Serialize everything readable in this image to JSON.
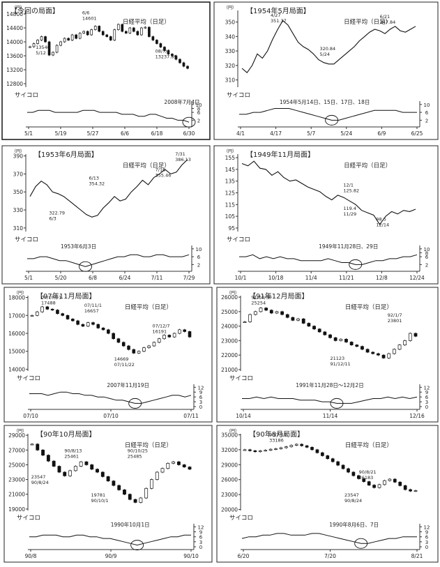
{
  "chart_data": [
    {
      "type": "candlestick",
      "title": "【今回の局面】",
      "series_label": "日経平均（日足）",
      "unit_label": "（円）",
      "yticks": [
        14800,
        14400,
        14000,
        13600,
        13200,
        12800
      ],
      "ylim": [
        12700,
        14900
      ],
      "xticks": [
        "5/1",
        "5/19",
        "5/27",
        "6/6",
        "6/18",
        "6/30"
      ],
      "close": [
        13860,
        13950,
        14050,
        14150,
        14000,
        13620,
        13700,
        13900,
        14000,
        14100,
        14050,
        14200,
        14100,
        14250,
        14300,
        14200,
        14350,
        14450,
        14300,
        14200,
        14150,
        14050,
        14350,
        14500,
        14300,
        14250,
        14400,
        14300,
        14200,
        14400,
        14420,
        14150,
        14050,
        13950,
        13850,
        13750,
        13650,
        13600,
        13500,
        13400,
        13300,
        13240
      ],
      "annotations": [
        {
          "text": "6/6",
          "value_label": "14601"
        },
        {
          "text": "13540",
          "value_label": "5/12"
        },
        {
          "text": "08/7/4",
          "value_label": "13237.89"
        }
      ],
      "dice_label": "サイコロ",
      "dice_yticks": [
        10,
        8,
        6,
        2
      ],
      "dice": [
        6,
        6,
        7,
        7,
        7,
        6,
        6,
        6,
        6,
        6,
        7,
        7,
        7,
        6,
        6,
        6,
        6,
        5,
        5,
        5,
        4,
        4,
        5,
        5,
        4,
        3,
        3,
        2,
        2,
        1
      ],
      "dice_note": "2008年7月4日"
    },
    {
      "type": "line",
      "title": "【1954年5月局面】",
      "series_label": "日経平均（日足）",
      "unit_label": "（円）",
      "yticks": [
        350,
        340,
        330,
        320,
        310
      ],
      "ylim": [
        305,
        358
      ],
      "xticks": [
        "4/1",
        "4/17",
        "5/7",
        "5/24",
        "6/9",
        "6/25"
      ],
      "close": [
        318,
        315,
        320,
        328,
        325,
        330,
        338,
        345,
        351,
        348,
        342,
        336,
        333,
        331,
        328,
        324,
        322,
        321,
        321,
        324,
        327,
        330,
        333,
        337,
        340,
        343,
        345,
        344,
        342,
        345,
        347,
        344,
        343,
        345,
        347
      ],
      "annotations": [
        {
          "text": "4/27",
          "value_label": "351.37"
        },
        {
          "text": "320.84",
          "value_label": "5/24"
        },
        {
          "text": "6/21",
          "value_label": "347.84"
        }
      ],
      "dice_label": "サイコロ",
      "dice_yticks": [
        10,
        6,
        2
      ],
      "dice": [
        5,
        5,
        6,
        6,
        7,
        8,
        8,
        8,
        7,
        6,
        5,
        4,
        3,
        2,
        2,
        3,
        4,
        5,
        6,
        7,
        7,
        7,
        7,
        6,
        6,
        6
      ],
      "dice_note": "1954年5月14日、15日、17日、18日"
    },
    {
      "type": "line",
      "title": "【1953年6月局面】",
      "series_label": "日経平均（日足）",
      "unit_label": "（円）",
      "yticks": [
        390,
        370,
        350,
        330,
        310
      ],
      "ylim": [
        306,
        392
      ],
      "xticks": [
        "5/1",
        "5/20",
        "6/8",
        "6/24",
        "7/11",
        "7/29"
      ],
      "close": [
        345,
        356,
        362,
        358,
        350,
        348,
        345,
        340,
        335,
        330,
        325,
        322,
        324,
        332,
        338,
        345,
        340,
        342,
        350,
        356,
        363,
        358,
        366,
        370,
        375,
        370,
        372,
        380,
        386
      ],
      "annotations": [
        {
          "text": "6/13",
          "value_label": "354.32"
        },
        {
          "text": "322.79",
          "value_label": "6/3"
        },
        {
          "text": "7/16",
          "value_label": "355.46"
        },
        {
          "text": "7/31",
          "value_label": "386.13"
        }
      ],
      "dice_label": "サイコロ",
      "dice_yticks": [
        10,
        6,
        2
      ],
      "dice": [
        5,
        5,
        6,
        6,
        5,
        4,
        4,
        3,
        2,
        1,
        2,
        3,
        4,
        5,
        6,
        6,
        7,
        7,
        6,
        6,
        7,
        7,
        6,
        6,
        6,
        7
      ],
      "dice_note": "1953年6月3日"
    },
    {
      "type": "line",
      "title": "【1949年11月局面】",
      "series_label": "日経平均（日足）",
      "unit_label": "（円）",
      "yticks": [
        155,
        145,
        135,
        125,
        115,
        105,
        95
      ],
      "ylim": [
        92,
        158
      ],
      "xticks": [
        "10/1",
        "10/18",
        "11/4",
        "11/21",
        "12/8",
        "12/24"
      ],
      "close": [
        150,
        148,
        152,
        146,
        145,
        140,
        143,
        138,
        135,
        136,
        133,
        130,
        128,
        126,
        122,
        119,
        123,
        121,
        118,
        115,
        110,
        108,
        106,
        98,
        105,
        109,
        107,
        110,
        109,
        111
      ],
      "annotations": [
        {
          "text": "12/1",
          "value_label": "125.82"
        },
        {
          "text": "119.4",
          "value_label": "11/29"
        },
        {
          "text": "98.5",
          "value_label": "12/14"
        }
      ],
      "dice_label": "サイコロ",
      "dice_yticks": [
        10,
        8,
        6,
        2
      ],
      "dice": [
        6,
        6,
        7,
        5,
        6,
        5,
        6,
        5,
        5,
        4,
        4,
        4,
        4,
        5,
        4,
        3,
        3,
        2,
        2,
        3,
        4,
        4,
        5,
        5,
        6,
        6,
        7
      ],
      "dice_note": "1949年11月28日、29日"
    },
    {
      "type": "candlestick",
      "title": "【07年11月局面】",
      "series_label": "日経平均（日足）",
      "unit_label": "（円）",
      "yticks": [
        18000,
        17000,
        16000,
        15000,
        14000
      ],
      "ylim": [
        13900,
        18100
      ],
      "xticks": [
        "07/10",
        "07/10",
        "07/11"
      ],
      "close": [
        17000,
        17200,
        17480,
        17350,
        17300,
        17100,
        17000,
        16800,
        16700,
        16500,
        16400,
        16600,
        16500,
        16300,
        16200,
        16000,
        15700,
        15500,
        15300,
        15100,
        14900,
        15000,
        15200,
        15300,
        15500,
        15700,
        15900,
        15800,
        16000,
        16200,
        16100,
        15800
      ],
      "annotations": [
        {
          "text": "07/10/11",
          "value_label": "17488"
        },
        {
          "text": "07/11/1",
          "value_label": "16657"
        },
        {
          "text": "07/12/7",
          "value_label": "16191"
        },
        {
          "text": "14669",
          "value_label": "07/11/22"
        }
      ],
      "dice_label": "サイコロ",
      "dice_yticks": [
        12,
        9,
        6,
        3,
        0
      ],
      "dice": [
        8,
        8,
        8,
        7,
        8,
        9,
        9,
        8,
        8,
        7,
        7,
        6,
        6,
        5,
        4,
        4,
        3,
        2,
        2,
        3,
        4,
        5,
        6,
        7,
        7,
        6,
        7
      ],
      "dice_note": "2007年11月19日"
    },
    {
      "type": "candlestick",
      "title": "【91年12月局面】",
      "series_label": "日経平均（日足）",
      "unit_label": "（円）",
      "yticks": [
        26000,
        25000,
        24000,
        23000,
        22000,
        21000
      ],
      "ylim": [
        20900,
        26100
      ],
      "xticks": [
        "10/14",
        "11/14",
        "12/16"
      ],
      "close": [
        24300,
        24800,
        25000,
        25250,
        25100,
        24900,
        25000,
        24800,
        24600,
        24400,
        24500,
        24200,
        24000,
        23800,
        23600,
        23400,
        23200,
        23000,
        23100,
        22900,
        22700,
        22600,
        22400,
        22200,
        22100,
        22000,
        21800,
        22100,
        22400,
        22700,
        23000,
        23500,
        23300
      ],
      "annotations": [
        {
          "text": "91/10/30",
          "value_label": "25254"
        },
        {
          "text": "92/1/7",
          "value_label": "23801"
        },
        {
          "text": "21123",
          "value_label": "91/12/11"
        }
      ],
      "dice_label": "サイコロ",
      "dice_yticks": [
        12,
        9,
        6,
        3,
        0
      ],
      "dice": [
        5,
        5,
        6,
        5,
        6,
        5,
        5,
        5,
        4,
        4,
        4,
        3,
        3,
        2,
        2,
        2,
        3,
        4,
        5,
        5,
        6,
        5,
        6,
        5,
        6
      ],
      "dice_note": "1991年11月28日～12月2日"
    },
    {
      "type": "candlestick",
      "title": "【90年10月局面】",
      "series_label": "日経平均（日足）",
      "unit_label": "（円）",
      "yticks": [
        29000,
        27000,
        25000,
        23000,
        21000,
        19000
      ],
      "ylim": [
        18800,
        29200
      ],
      "xticks": [
        "90/8",
        "90/9",
        "90/10"
      ],
      "close": [
        27800,
        27000,
        26300,
        25500,
        24800,
        24000,
        23500,
        24200,
        24800,
        25400,
        25000,
        24400,
        24000,
        23400,
        22800,
        22200,
        21600,
        21000,
        20300,
        19900,
        20500,
        21800,
        23000,
        24000,
        24500,
        25200,
        25400,
        25000,
        24700,
        24400
      ],
      "annotations": [
        {
          "text": "90/8/13",
          "value_label": "25461"
        },
        {
          "text": "23547",
          "value_label": "90/8/24"
        },
        {
          "text": "90/10/25",
          "value_label": "25485"
        },
        {
          "text": "19781",
          "value_label": "90/10/1"
        }
      ],
      "dice_label": "サイコロ",
      "dice_yticks": [
        12,
        9,
        6,
        3,
        0
      ],
      "dice": [
        6,
        6,
        7,
        7,
        7,
        6,
        6,
        7,
        7,
        6,
        6,
        5,
        5,
        4,
        3,
        2,
        1,
        2,
        3,
        4,
        5,
        6,
        6,
        7,
        7
      ],
      "dice_note": "1990年10月1日"
    },
    {
      "type": "candlestick",
      "title": "【90年8月局面】",
      "series_label": "日経平均（日足）",
      "unit_label": "（円）",
      "yticks": [
        35000,
        32000,
        29000,
        26000,
        23000,
        20000
      ],
      "ylim": [
        19800,
        35200
      ],
      "xticks": [
        "6/20",
        "7/20",
        "8/21"
      ],
      "close": [
        32000,
        31800,
        31600,
        31800,
        31900,
        32100,
        32200,
        32400,
        32600,
        32900,
        33100,
        32800,
        32500,
        32000,
        31400,
        30800,
        30200,
        29600,
        28900,
        28200,
        27500,
        26800,
        26200,
        25600,
        24900,
        24400,
        25000,
        25800,
        26100,
        25500,
        24800,
        24000,
        23700,
        23800
      ],
      "annotations": [
        {
          "text": "90/7/18",
          "value_label": "33186"
        },
        {
          "text": "90/8/21",
          "value_label": "26183"
        },
        {
          "text": "23547",
          "value_label": "90/8/24"
        }
      ],
      "dice_label": "サイコロ",
      "dice_yticks": [
        12,
        9,
        6,
        3,
        0
      ],
      "dice": [
        5,
        6,
        6,
        7,
        7,
        8,
        8,
        7,
        7,
        7,
        8,
        8,
        7,
        6,
        5,
        4,
        3,
        2,
        2,
        3,
        4,
        5,
        5,
        6,
        6,
        6
      ],
      "dice_note": "1990年8月6日、7日"
    }
  ]
}
